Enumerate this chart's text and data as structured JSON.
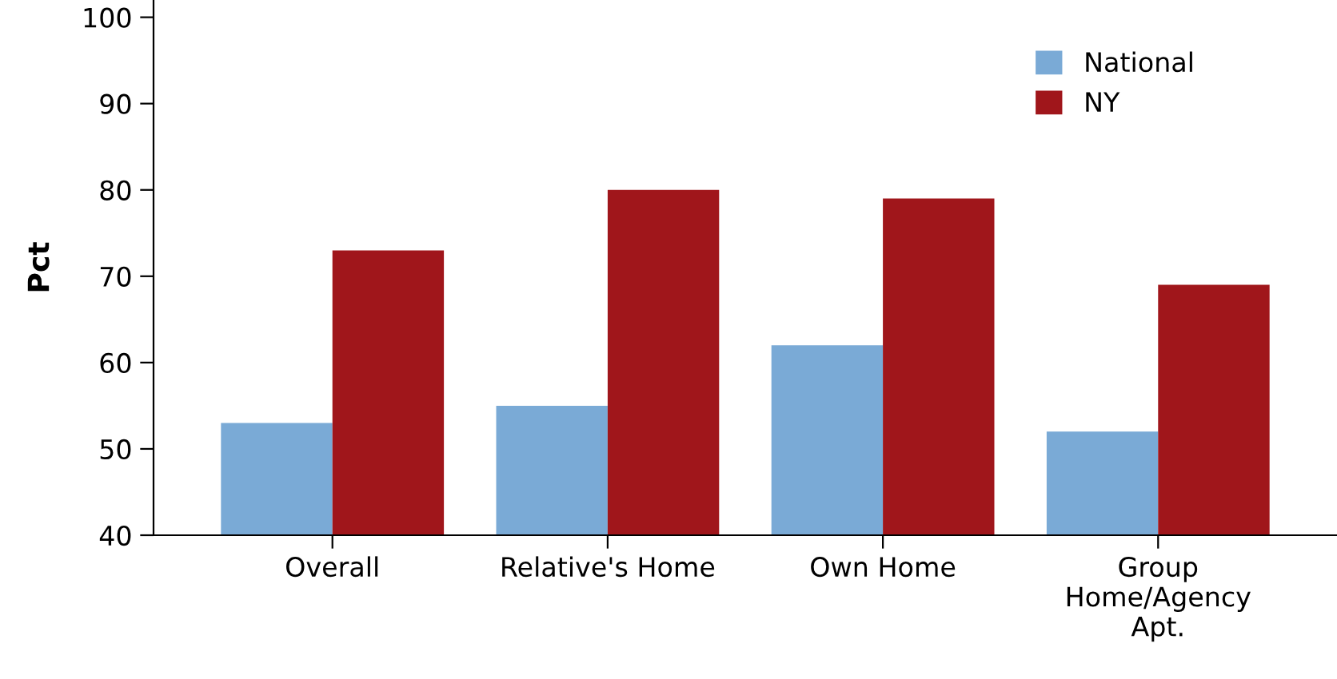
{
  "chart_data": {
    "type": "bar",
    "ylabel": "Pct",
    "categories": [
      "Overall",
      "Relative's Home",
      "Own Home",
      "Group\nHome/Agency\nApt."
    ],
    "series": [
      {
        "name": "National",
        "color": "#7aaad6",
        "values": [
          53,
          55,
          62,
          52
        ]
      },
      {
        "name": "NY",
        "color": "#a0161b",
        "values": [
          73,
          80,
          79,
          69
        ]
      }
    ],
    "ylim": [
      40,
      102
    ],
    "yticks": [
      40,
      50,
      60,
      70,
      80,
      90,
      100
    ],
    "grid": false,
    "legend": "top right"
  }
}
